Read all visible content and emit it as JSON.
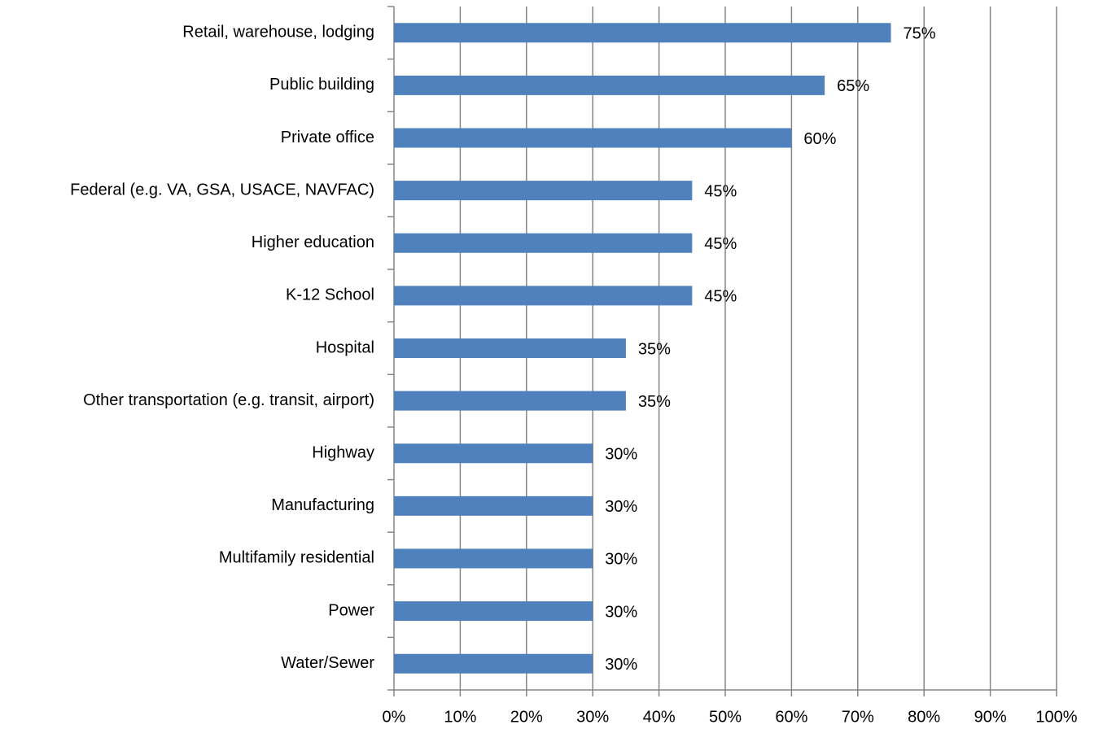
{
  "chart_data": {
    "type": "bar",
    "orientation": "horizontal",
    "categories": [
      "Retail, warehouse, lodging",
      "Public building",
      "Private office",
      "Federal (e.g. VA, GSA, USACE, NAVFAC)",
      "Higher education",
      "K-12 School",
      "Hospital",
      "Other transportation (e.g. transit, airport)",
      "Highway",
      "Manufacturing",
      "Multifamily residential",
      "Power",
      "Water/Sewer"
    ],
    "values": [
      75,
      65,
      60,
      45,
      45,
      45,
      35,
      35,
      30,
      30,
      30,
      30,
      30
    ],
    "value_labels": [
      "75%",
      "65%",
      "60%",
      "45%",
      "45%",
      "45%",
      "35%",
      "35%",
      "30%",
      "30%",
      "30%",
      "30%",
      "30%"
    ],
    "color": "#4f81bd",
    "xlim": [
      0,
      100
    ],
    "xticks": [
      {
        "value": 0,
        "label": "0%"
      },
      {
        "value": 10,
        "label": "10%"
      },
      {
        "value": 20,
        "label": "20%"
      },
      {
        "value": 30,
        "label": "30%"
      },
      {
        "value": 40,
        "label": "40%"
      },
      {
        "value": 50,
        "label": "50%"
      },
      {
        "value": 60,
        "label": "60%"
      },
      {
        "value": 70,
        "label": "70%"
      },
      {
        "value": 80,
        "label": "80%"
      },
      {
        "value": 90,
        "label": "90%"
      },
      {
        "value": 100,
        "label": "100%"
      }
    ],
    "grid": true
  }
}
